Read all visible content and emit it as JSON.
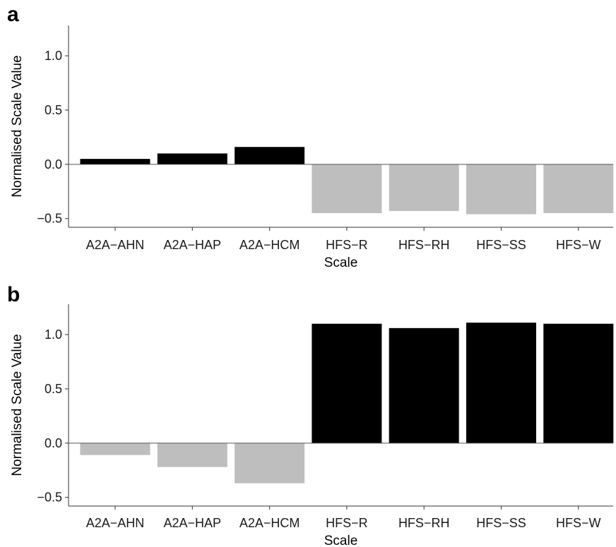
{
  "chart_data": [
    {
      "type": "bar",
      "panel_label": "a",
      "categories": [
        "A2A−AHN",
        "A2A−HAP",
        "A2A−HCM",
        "HFS−R",
        "HFS−RH",
        "HFS−SS",
        "HFS−W"
      ],
      "values": [
        0.05,
        0.1,
        0.16,
        -0.45,
        -0.43,
        -0.46,
        -0.45
      ],
      "xlabel": "Scale",
      "ylabel": "Normalised Scale Value",
      "ylim": [
        -0.58,
        1.28
      ],
      "yticks": [
        -0.5,
        0.0,
        0.5,
        1.0
      ],
      "ytick_labels": [
        "−0.5",
        "0.0",
        "0.5",
        "1.0"
      ],
      "positive_color": "#000000",
      "negative_color": "#bebebe",
      "grid": false
    },
    {
      "type": "bar",
      "panel_label": "b",
      "categories": [
        "A2A−AHN",
        "A2A−HAP",
        "A2A−HCM",
        "HFS−R",
        "HFS−RH",
        "HFS−SS",
        "HFS−W"
      ],
      "values": [
        -0.11,
        -0.22,
        -0.37,
        1.1,
        1.06,
        1.11,
        1.1
      ],
      "xlabel": "Scale",
      "ylabel": "Normalised Scale Value",
      "ylim": [
        -0.58,
        1.28
      ],
      "yticks": [
        -0.5,
        0.0,
        0.5,
        1.0
      ],
      "ytick_labels": [
        "−0.5",
        "0.0",
        "0.5",
        "1.0"
      ],
      "positive_color": "#000000",
      "negative_color": "#bebebe",
      "grid": false
    }
  ]
}
